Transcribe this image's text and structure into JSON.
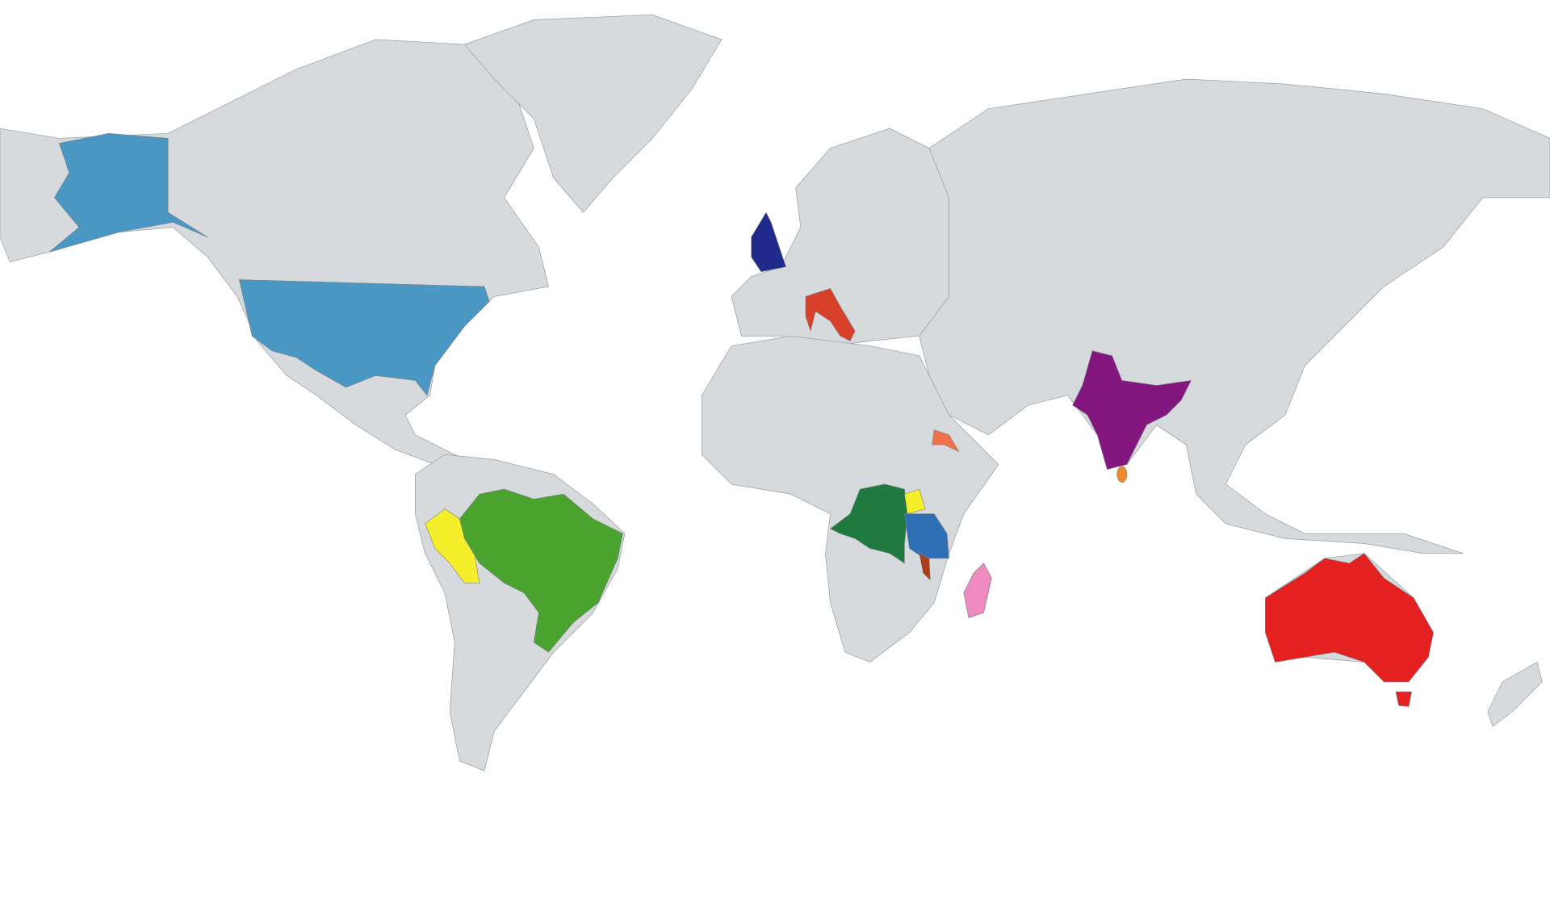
{
  "map": {
    "background_color": "#ffffff",
    "land_color": "#d6dadd",
    "border_color": "#9aa0a6",
    "highlighted_regions": {
      "usa": "#4a97c4",
      "united_kingdom": "#1f2a8a",
      "italy": "#d9402a",
      "india": "#84177f",
      "sri_lanka": "#f08a2e",
      "eritrea": "#f0704a",
      "peru": "#f5ee2a",
      "brazil": "#4aa32e",
      "dr_congo": "#1f7a40",
      "uganda": "#f5ee2a",
      "tanzania": "#2f6fb5",
      "malawi": "#a8401a",
      "madagascar": "#f08ac0",
      "australia": "#e52020"
    }
  }
}
